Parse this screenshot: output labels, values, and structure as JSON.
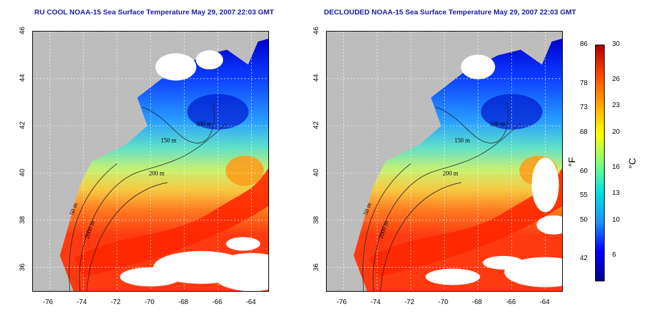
{
  "titles": {
    "left": "RU COOL NOAA-15 Sea Surface Temperature May 29, 2007 22:03 GMT",
    "right": "DECLOUDED NOAA-15 Sea Surface Temperature May 29, 2007 22:03 GMT"
  },
  "axes": {
    "x_ticks": [
      "-76",
      "-74",
      "-72",
      "-70",
      "-68",
      "-66",
      "-64"
    ],
    "y_ticks": [
      "46",
      "44",
      "42",
      "40",
      "38",
      "36"
    ],
    "lon_range": [
      -77,
      -63
    ],
    "lat_range": [
      35,
      46
    ]
  },
  "contour_labels": {
    "c200": "200 m",
    "c100": "100 m",
    "c50": "50 m",
    "c2000": "2000 m",
    "c150": "150 m"
  },
  "colorbar": {
    "fahrenheit_ticks": [
      "86",
      "78",
      "73",
      "68",
      "60",
      "55",
      "50",
      "42"
    ],
    "celsius_ticks": [
      "30",
      "26",
      "23",
      "20",
      "16",
      "13",
      "10",
      "6"
    ],
    "unit_f": "°F",
    "unit_c": "°C",
    "range_c": [
      3,
      30
    ],
    "colors": [
      "#00008c",
      "#0000ff",
      "#1e90ff",
      "#00e0e0",
      "#7fff7f",
      "#ffff00",
      "#ffa500",
      "#ff4500",
      "#b00000"
    ]
  },
  "colors": {
    "land": "#bdbdbd",
    "cloud": "#ffffff",
    "title": "#1a1aa6"
  }
}
